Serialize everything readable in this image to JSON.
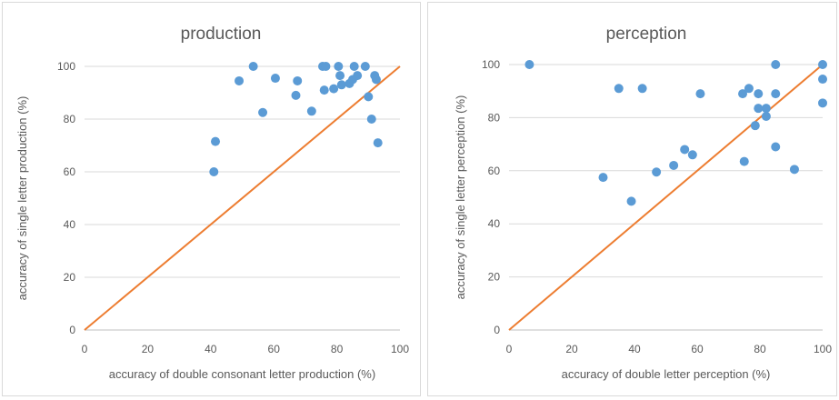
{
  "colors": {
    "points": "#5b9bd5",
    "diagonal": "#ed7d31",
    "grid": "#d9d9d9",
    "text": "#595959"
  },
  "chart_data": [
    {
      "type": "scatter",
      "title": "production",
      "xlabel": "accuracy of double consonant letter production (%)",
      "ylabel": "accuracy of single letter production (%)",
      "xlim": [
        0,
        100
      ],
      "ylim": [
        0,
        100
      ],
      "xticks": [
        0,
        20,
        40,
        60,
        80,
        100
      ],
      "yticks": [
        0,
        20,
        40,
        60,
        80,
        100
      ],
      "grid": "horizontal",
      "reference_line": [
        [
          0,
          0
        ],
        [
          100,
          100
        ]
      ],
      "points": [
        {
          "x": 41,
          "y": 60
        },
        {
          "x": 41.5,
          "y": 71.5
        },
        {
          "x": 49,
          "y": 94.5
        },
        {
          "x": 53.5,
          "y": 100
        },
        {
          "x": 56.5,
          "y": 82.5
        },
        {
          "x": 60.5,
          "y": 95.5
        },
        {
          "x": 67,
          "y": 89
        },
        {
          "x": 67.5,
          "y": 94.5
        },
        {
          "x": 72,
          "y": 83
        },
        {
          "x": 75.5,
          "y": 100
        },
        {
          "x": 76.5,
          "y": 100
        },
        {
          "x": 76,
          "y": 91
        },
        {
          "x": 79,
          "y": 91.5
        },
        {
          "x": 80.5,
          "y": 100
        },
        {
          "x": 81,
          "y": 96.5
        },
        {
          "x": 81.5,
          "y": 93
        },
        {
          "x": 84,
          "y": 93.5
        },
        {
          "x": 85,
          "y": 95
        },
        {
          "x": 85.5,
          "y": 100
        },
        {
          "x": 86.5,
          "y": 96.5
        },
        {
          "x": 89,
          "y": 100
        },
        {
          "x": 90,
          "y": 88.5
        },
        {
          "x": 91,
          "y": 80
        },
        {
          "x": 92,
          "y": 96.5
        },
        {
          "x": 92.5,
          "y": 95
        },
        {
          "x": 93,
          "y": 71
        }
      ]
    },
    {
      "type": "scatter",
      "title": "perception",
      "xlabel": "accuracy of double letter perception (%)",
      "ylabel": "accuracy of single letter perception (%)",
      "xlim": [
        0,
        100
      ],
      "ylim": [
        0,
        100
      ],
      "xticks": [
        0,
        20,
        40,
        60,
        80,
        100
      ],
      "yticks": [
        0,
        20,
        40,
        60,
        80,
        100
      ],
      "grid": "horizontal",
      "reference_line": [
        [
          0,
          0
        ],
        [
          100,
          100
        ]
      ],
      "points": [
        {
          "x": 6.5,
          "y": 100
        },
        {
          "x": 30,
          "y": 57.5
        },
        {
          "x": 35,
          "y": 91
        },
        {
          "x": 39,
          "y": 48.5
        },
        {
          "x": 42.5,
          "y": 91
        },
        {
          "x": 47,
          "y": 59.5
        },
        {
          "x": 52.5,
          "y": 62
        },
        {
          "x": 56,
          "y": 68
        },
        {
          "x": 58.5,
          "y": 66
        },
        {
          "x": 61,
          "y": 89
        },
        {
          "x": 74.5,
          "y": 89
        },
        {
          "x": 75,
          "y": 63.5
        },
        {
          "x": 76.5,
          "y": 91
        },
        {
          "x": 78.5,
          "y": 77
        },
        {
          "x": 79.5,
          "y": 89
        },
        {
          "x": 79.5,
          "y": 83.5
        },
        {
          "x": 82,
          "y": 83.5
        },
        {
          "x": 82,
          "y": 80.5
        },
        {
          "x": 85,
          "y": 100
        },
        {
          "x": 85,
          "y": 89
        },
        {
          "x": 85,
          "y": 69
        },
        {
          "x": 91,
          "y": 60.5
        },
        {
          "x": 100,
          "y": 100
        },
        {
          "x": 100,
          "y": 94.5
        },
        {
          "x": 100,
          "y": 85.5
        }
      ]
    }
  ]
}
